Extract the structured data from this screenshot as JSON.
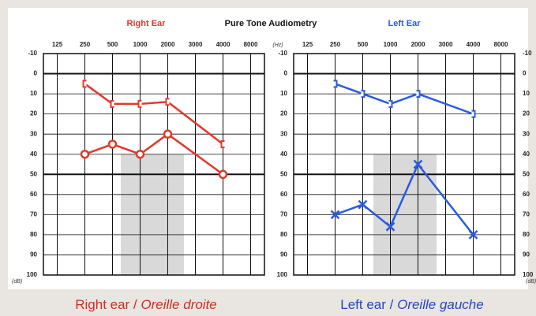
{
  "title": "Pure Tone Audiometry",
  "x_unit": "(Hz)",
  "chart_data": [
    {
      "type": "line",
      "title": "Right Ear",
      "title_color": "#e0392c",
      "y_unit": "(dB)",
      "caption": [
        "Right ear / ",
        "Oreille droite"
      ],
      "caption_color": "#d42a1e",
      "xticks": [
        125,
        250,
        500,
        1000,
        2000,
        3000,
        4000,
        8000
      ],
      "ylim": [
        -10,
        100
      ],
      "y_inverted": true,
      "yticks": [
        -10,
        0,
        10,
        20,
        30,
        40,
        50,
        60,
        70,
        80,
        90,
        100
      ],
      "major_gridlines": [
        0,
        50
      ],
      "ytick_sides": [
        "left"
      ],
      "grid": true,
      "series": [
        {
          "marker": "bracket-left",
          "color": "#e0392c",
          "x": [
            250,
            500,
            1000,
            2000,
            4000
          ],
          "values": [
            5,
            15,
            15,
            14,
            35
          ]
        },
        {
          "marker": "circle",
          "color": "#e0392c",
          "x": [
            250,
            500,
            1000,
            2000,
            4000
          ],
          "values": [
            40,
            35,
            40,
            30,
            50
          ]
        }
      ]
    },
    {
      "type": "line",
      "title": "Left Ear",
      "title_color": "#2a5ae0",
      "y_unit": "(dB)",
      "caption": [
        "Left ear / ",
        "Oreille gauche"
      ],
      "caption_color": "#1f44c8",
      "xticks": [
        125,
        250,
        500,
        1000,
        2000,
        3000,
        4000,
        8000
      ],
      "ylim": [
        -10,
        100
      ],
      "y_inverted": true,
      "yticks": [
        -10,
        0,
        10,
        20,
        30,
        40,
        50,
        60,
        70,
        80,
        90,
        100
      ],
      "major_gridlines": [
        0,
        50
      ],
      "ytick_sides": [
        "left",
        "right"
      ],
      "grid": true,
      "series": [
        {
          "marker": "bracket-right",
          "color": "#2a5ae0",
          "x": [
            250,
            500,
            1000,
            2000,
            4000
          ],
          "values": [
            5,
            10,
            15,
            10,
            20
          ]
        },
        {
          "marker": "cross",
          "color": "#2a5ae0",
          "x": [
            250,
            500,
            1000,
            2000,
            4000
          ],
          "values": [
            70,
            65,
            76,
            45,
            80
          ]
        }
      ]
    }
  ]
}
